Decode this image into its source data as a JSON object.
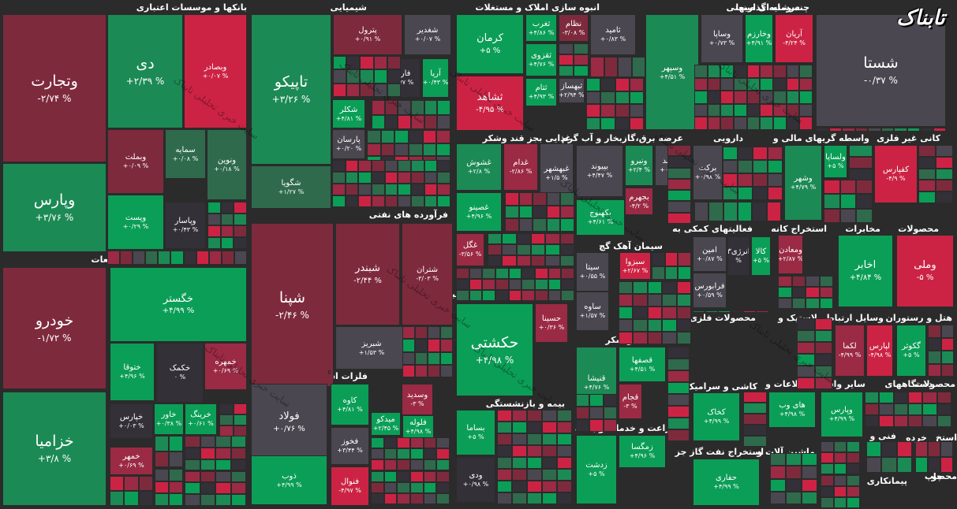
{
  "brand": "تابناک",
  "watermark": "سایت خبری تحلیلی تابناک",
  "colors": {
    "sg": "#0b9e57",
    "mg": "#1c8a55",
    "dg": "#2f6a4c",
    "gy": "#4a4750",
    "dr": "#7e2a3d",
    "mr": "#9b2a44",
    "sr": "#cc2344",
    "dk": "#333038",
    "bg": "#2b2b2b"
  },
  "sections": {
    "banks": "بانکها و موسسات اعتباری",
    "chemical": "شیمیایی",
    "construction": "انبوه سازی املاک و مستغلات",
    "investment": "سرمایه گذاریها",
    "multi": "چندرشته ای صنعتی",
    "auto": "خودرو و قطعات",
    "oil": "فرآورده های نفتی",
    "food": "غذایی بجز قند وشکر",
    "utility": "عرضه برق،گازبخار و آب گرم",
    "pharma": "دارویی",
    "financial": "واسطه گریهای مالی و",
    "nonmetal": "کانی غیر فلزی",
    "activity": "فعالیتهای کمکی به",
    "extraction": "استخراج کانه",
    "telecom": "مخابرات",
    "products": "محصولات",
    "cement": "سیمان آهک گچ",
    "transport": "حمل و نقل انبارداری و ارتباطات",
    "metals": "فلزات اساسی",
    "metalprod": "محصولات فلزی",
    "rubber": "لاستیک و",
    "vehicles": "وسایل ارتباطی",
    "hotel": "هتل و رستوران",
    "sugar": "قند و شکر",
    "tile": "کاشی و سرامیک",
    "info": "اطلاعات و",
    "otherbroker": "سایر واسطه",
    "devices": "دستگاههای",
    "products2": "محصولات",
    "insurance": "بیمه و بازنشستگی",
    "agri": "زراعت و خدمات وابسته",
    "oilgas": "استخراج نفت گاز جز",
    "machinery": "ماشین آلات و",
    "tech": "فنی و",
    "radio": "رایانه",
    "contractor": "پیمانکاری",
    "estekh": "استخ",
    "kharde": "خرده",
    "chap": "چاپ",
    "mahs": "محصو"
  },
  "tiles": [
    {
      "id": "vtejarat",
      "name": "وتجارت",
      "pct": "-۲/۷۴ %"
    },
    {
      "id": "di",
      "name": "دی",
      "pct": "+۲/۳۹ %"
    },
    {
      "id": "vbsader",
      "name": "وبصادر",
      "pct": "+۰/۰۷ %"
    },
    {
      "id": "vbmelat",
      "name": "وبملت",
      "pct": "+۰/۰۹ %"
    },
    {
      "id": "samayeh",
      "name": "سمایه",
      "pct": "+۰/۰۸ %"
    },
    {
      "id": "vnovin",
      "name": "ونوین",
      "pct": "+۰/۱۸ %"
    },
    {
      "id": "vparis",
      "name": "وپارس",
      "pct": "+۳/۷۶ %"
    },
    {
      "id": "vpast",
      "name": "وپست",
      "pct": "+۰/۲۹ %"
    },
    {
      "id": "vyasar",
      "name": "وپاسار",
      "pct": "+۰/۴۳ %"
    },
    {
      "id": "khodro",
      "name": "خودرو",
      "pct": "-۱/۷۲ %"
    },
    {
      "id": "khegstar",
      "name": "خگستر",
      "pct": "+۴/۹۹ %"
    },
    {
      "id": "khtoga",
      "name": "ختوقا",
      "pct": "+۴/۹۶ %"
    },
    {
      "id": "khakmak",
      "name": "خکمک",
      "pct": "۰ %"
    },
    {
      "id": "khamehreh",
      "name": "خمهره",
      "pct": "+۰/۶۹ %"
    },
    {
      "id": "khazamia",
      "name": "خزامیا",
      "pct": "+۳/۸ %"
    },
    {
      "id": "khepars",
      "name": "خپارس",
      "pct": "+۰/۰۳ %"
    },
    {
      "id": "khavar",
      "name": "خاور",
      "pct": "+۰/۳۸ %"
    },
    {
      "id": "khering",
      "name": "خرینگ",
      "pct": "+۰/۶۱ %"
    },
    {
      "id": "khemhar",
      "name": "خمهر",
      "pct": "+۰/۶۹ %"
    },
    {
      "id": "tapiko",
      "name": "تاپیکو",
      "pct": "+۳/۲۶ %"
    },
    {
      "id": "petrol",
      "name": "پترول",
      "pct": "+۰/۹۱ %"
    },
    {
      "id": "shaghadir",
      "name": "شغدیر",
      "pct": "+۰/۰۷ %"
    },
    {
      "id": "shiran",
      "name": "شیران",
      "pct": "+۴/۹۸ %"
    },
    {
      "id": "fars",
      "name": "فارس",
      "pct": "+۰/۷۷ %"
    },
    {
      "id": "arya",
      "name": "آریا",
      "pct": "+۰/۴۳ %"
    },
    {
      "id": "shekar",
      "name": "شکلر",
      "pct": "+۴/۸۱ %"
    },
    {
      "id": "parsan",
      "name": "پارسان",
      "pct": "+۰/۲۰ %"
    },
    {
      "id": "shguia",
      "name": "شگویا",
      "pct": "+۱/۲۷ %"
    },
    {
      "id": "shpana",
      "name": "شپنا",
      "pct": "-۲/۴۶ %"
    },
    {
      "id": "shbandar",
      "name": "شبندر",
      "pct": "-۲/۴۴ %"
    },
    {
      "id": "shtran",
      "name": "شتران",
      "pct": "-۳/۰۳ %"
    },
    {
      "id": "shbriz",
      "name": "شبریز",
      "pct": "+۱/۵۳ %"
    },
    {
      "id": "folad",
      "name": "فولاد",
      "pct": "+۰/۷۶ %"
    },
    {
      "id": "kaveh",
      "name": "کاوه",
      "pct": "+۴/۸۱ %"
    },
    {
      "id": "vsadid",
      "name": "وسدید",
      "pct": "-۳ %"
    },
    {
      "id": "midko",
      "name": "میدکو",
      "pct": "+۲/۴۵ %"
    },
    {
      "id": "feloleh",
      "name": "فلوله",
      "pct": "+۴/۹۸ %"
    },
    {
      "id": "fakhooz",
      "name": "فخوز",
      "pct": "+۳/۴۴ %"
    },
    {
      "id": "zob",
      "name": "ذوب",
      "pct": "+۴/۹۹ %"
    },
    {
      "id": "fanval",
      "name": "فنوال",
      "pct": "-۴/۹۷ %"
    },
    {
      "id": "kerman",
      "name": "کرمان",
      "pct": "+۵ %"
    },
    {
      "id": "tagharb",
      "name": "ثغرب",
      "pct": "+۴/۸۶ %"
    },
    {
      "id": "nezam",
      "name": "نظام",
      "pct": "-۳/۰۸ %"
    },
    {
      "id": "tamid",
      "name": "ثامید",
      "pct": "+۰/۸۳ %"
    },
    {
      "id": "taghozi",
      "name": "ثقزوی",
      "pct": "+۴/۷۶ %"
    },
    {
      "id": "tasam",
      "name": "ثتام",
      "pct": "+۴/۹۳ %"
    },
    {
      "id": "tabsaz",
      "name": "ثبهساز",
      "pct": "+۲/۹۴ %"
    },
    {
      "id": "tashahed",
      "name": "ثشاهد",
      "pct": "-۴/۹۵ %"
    },
    {
      "id": "vsapa",
      "name": "وساپا",
      "pct": "+۰/۷۳ %"
    },
    {
      "id": "vkharazm",
      "name": "وخارزم",
      "pct": "+۴/۹۱ %"
    },
    {
      "id": "arian",
      "name": "آریان",
      "pct": "-۴/۲۴ %"
    },
    {
      "id": "vsepehr",
      "name": "وسپهر",
      "pct": "+۴/۵۱ %"
    },
    {
      "id": "shasta",
      "name": "شستا",
      "pct": "-۰/۳۷ %"
    },
    {
      "id": "ghshoosh",
      "name": "غشوش",
      "pct": "+۲/۸ %"
    },
    {
      "id": "ghdam",
      "name": "غدام",
      "pct": "-۲/۸۶ %"
    },
    {
      "id": "ghbshahr",
      "name": "غبهشهر",
      "pct": "+۱/۵ %"
    },
    {
      "id": "ghasino",
      "name": "غصینو",
      "pct": "+۴/۹۶ %"
    },
    {
      "id": "ghgol",
      "name": "غگل",
      "pct": "-۳/۵۶ %"
    },
    {
      "id": "bbiond",
      "name": "بپیوند",
      "pct": "+۴/۴۷ %"
    },
    {
      "id": "vniro",
      "name": "ونیرو",
      "pct": "+۲/۴ %"
    },
    {
      "id": "damavand",
      "name": "دماوند",
      "pct": "+۰/۶۵ %"
    },
    {
      "id": "bjahrom",
      "name": "بجهرم",
      "pct": "-۴/۲ %"
    },
    {
      "id": "bkahnoj",
      "name": "بکهنوج",
      "pct": "+۴/۶۱ %"
    },
    {
      "id": "barakat",
      "name": "برکت",
      "pct": "+۰/۹۸ %"
    },
    {
      "id": "vlsapa",
      "name": "ولساپا",
      "pct": "+۵ %"
    },
    {
      "id": "vshahr",
      "name": "وشهر",
      "pct": "+۴/۷۹ %"
    },
    {
      "id": "kfepars",
      "name": "کفپارس",
      "pct": "-۴/۹ %"
    },
    {
      "id": "amin",
      "name": "امین",
      "pct": "+۰/۸۷ %"
    },
    {
      "id": "energy3",
      "name": "انرژی۳",
      "pct": "%"
    },
    {
      "id": "kala",
      "name": "کالا",
      "pct": "+۵ %"
    },
    {
      "id": "farabors",
      "name": "فرابورس",
      "pct": "+۰/۵۹ %"
    },
    {
      "id": "vmadan",
      "name": "ومعادن",
      "pct": "+۲/۸۷ %"
    },
    {
      "id": "akhaber",
      "name": "اخابر",
      "pct": "+۴/۸۴ %"
    },
    {
      "id": "vmelli",
      "name": "وملی",
      "pct": "-۵ %"
    },
    {
      "id": "sbzva",
      "name": "سبزوا",
      "pct": "+۲/۶۷ %"
    },
    {
      "id": "sita",
      "name": "سیتا",
      "pct": "+۰/۵۵ %"
    },
    {
      "id": "saveh",
      "name": "ساوه",
      "pct": "+۱/۵۷ %"
    },
    {
      "id": "hksheti",
      "name": "حکشتی",
      "pct": "+۴/۹۸ %"
    },
    {
      "id": "hsina",
      "name": "حسینا",
      "pct": "+۰/۳۶ %"
    },
    {
      "id": "ghesfaha",
      "name": "قصفها",
      "pct": "+۴/۵۱ %"
    },
    {
      "id": "ghenisha",
      "name": "قنیشا",
      "pct": "+۴/۷۶ %"
    },
    {
      "id": "ghjam",
      "name": "قجام",
      "pct": "-۳ %"
    },
    {
      "id": "lkama",
      "name": "لکما",
      "pct": "-۴/۹۹ %"
    },
    {
      "id": "lpars",
      "name": "لپارس",
      "pct": "-۴/۹۸ %"
    },
    {
      "id": "gkosar",
      "name": "گکوثر",
      "pct": "+۵ %"
    },
    {
      "id": "kkhak",
      "name": "کخاک",
      "pct": "+۴/۹۹ %"
    },
    {
      "id": "vpars2",
      "name": "وپارس",
      "pct": "+۴/۹۹ %"
    },
    {
      "id": "haiweb",
      "name": "های وب",
      "pct": "+۴/۹۸ %"
    },
    {
      "id": "bsama",
      "name": "بساما",
      "pct": "+۵ %"
    },
    {
      "id": "vdi",
      "name": "ودی",
      "pct": "+۰/۹۸ %"
    },
    {
      "id": "zmgsa",
      "name": "زمگسا",
      "pct": "+۴/۹۶ %"
    },
    {
      "id": "zdasht",
      "name": "زدشت",
      "pct": "+۵ %"
    },
    {
      "id": "hafari",
      "name": "حفاری",
      "pct": "+۴/۹۹ %"
    }
  ]
}
